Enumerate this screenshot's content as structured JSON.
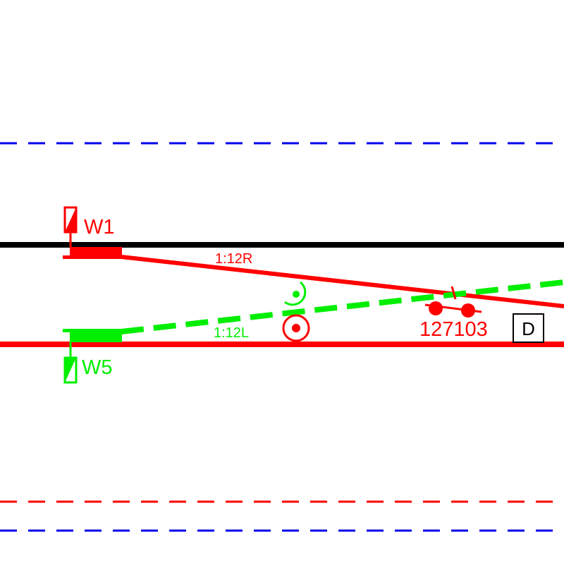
{
  "colors": {
    "red": "#ff0000",
    "green": "#00ee00",
    "blue": "#0000ee",
    "black": "#000000",
    "background": "#ffffff"
  },
  "switches": {
    "w1": {
      "label": "W1",
      "color": "red"
    },
    "w5": {
      "label": "W5",
      "color": "green"
    }
  },
  "turnouts": {
    "right": {
      "label": "1:12R",
      "color": "red"
    },
    "left": {
      "label": "1:12L",
      "color": "green"
    }
  },
  "track_circuit": {
    "label": "127103",
    "color": "red"
  },
  "marker_box": {
    "label": "D"
  },
  "lines": {
    "upper_boundary": {
      "style": "dashed",
      "color": "blue"
    },
    "lower_boundary_red": {
      "style": "dashed",
      "color": "red"
    },
    "lower_boundary_blue": {
      "style": "dashed",
      "color": "blue"
    },
    "main_track_top": {
      "style": "solid",
      "color": "black"
    },
    "main_track_bottom": {
      "style": "solid",
      "color": "red"
    },
    "diverging_route": {
      "style": "dashed",
      "color": "green"
    }
  }
}
